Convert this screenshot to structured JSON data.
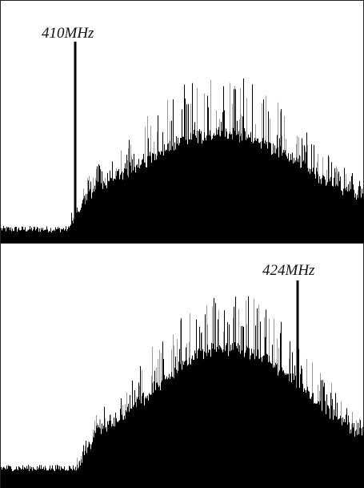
{
  "panels": [
    {
      "label": "410MHz"
    },
    {
      "label": "424MHz"
    }
  ]
}
